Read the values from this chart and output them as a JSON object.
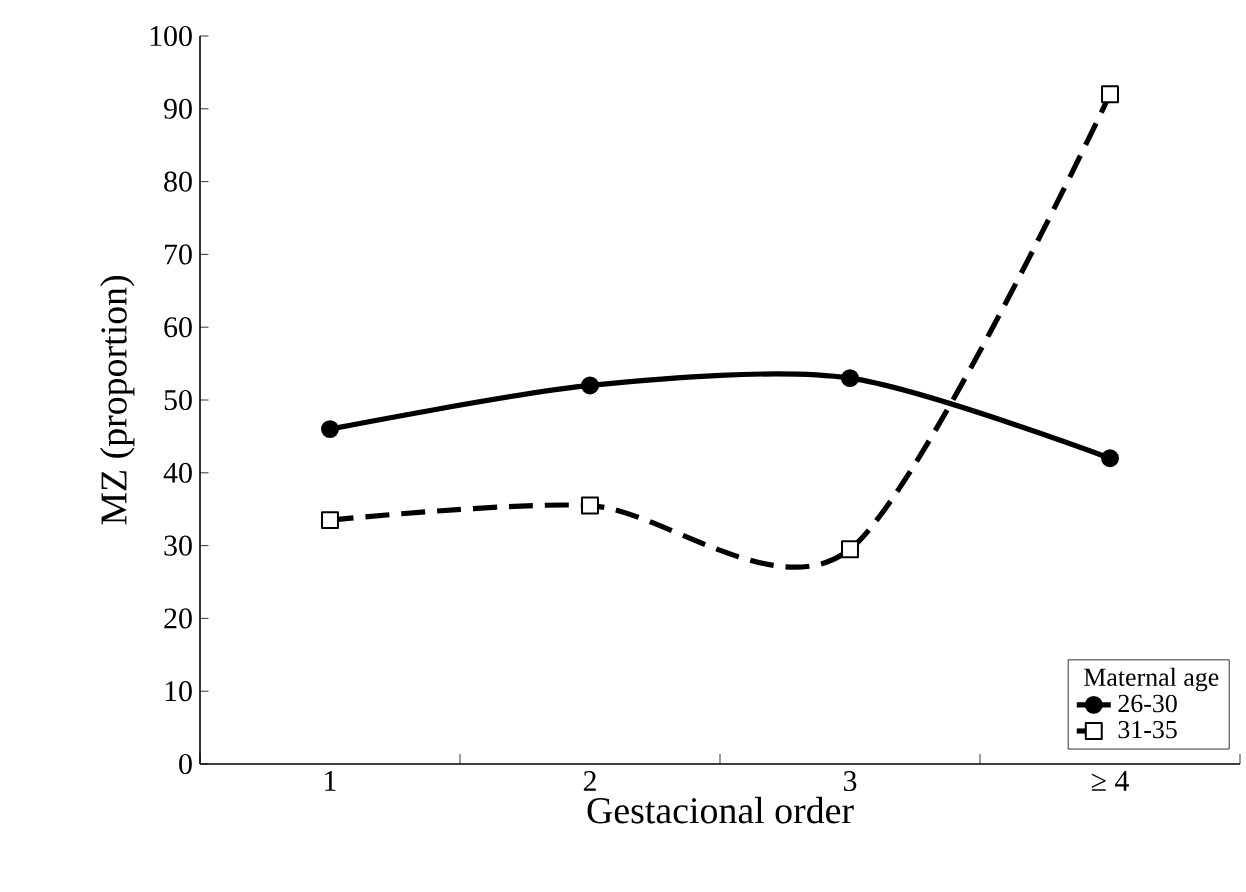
{
  "chart_data": {
    "type": "line",
    "xlabel": "Gestacional order",
    "ylabel": "MZ (proportion)",
    "legend_title": "Maternal age",
    "categories": [
      "1",
      "2",
      "3",
      "≥ 4"
    ],
    "series": [
      {
        "name": "26-30",
        "color": "#000000",
        "values": [
          46,
          52,
          53,
          42
        ],
        "marker": "circle",
        "line_style": "solid"
      },
      {
        "name": "31-35",
        "color": "#000000",
        "values": [
          33.5,
          35.5,
          29.5,
          92
        ],
        "marker": "square",
        "line_style": "dashed"
      }
    ],
    "ylim": [
      0,
      100
    ],
    "yticks": [
      0,
      10,
      20,
      30,
      40,
      50,
      60,
      70,
      80,
      90,
      100
    ],
    "legend": "bottom right",
    "grid": false
  }
}
